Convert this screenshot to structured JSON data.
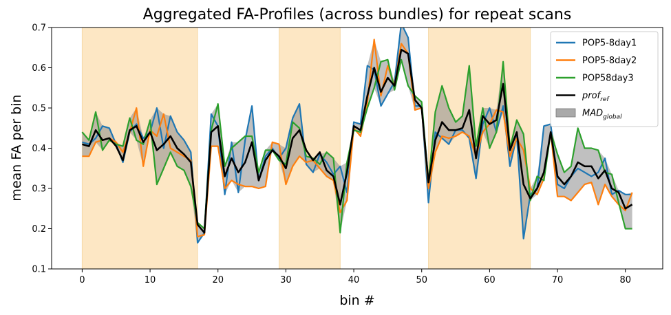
{
  "chart_data": {
    "type": "line",
    "title": "Aggregated FA-Profiles (across bundles) for repeat scans",
    "xlabel": "bin #",
    "ylabel": "mean FA per bin",
    "xlim": [
      -4.5,
      85.5
    ],
    "ylim": [
      0.1,
      0.7
    ],
    "xticks": [
      0,
      10,
      20,
      30,
      40,
      50,
      60,
      70,
      80
    ],
    "yticks": [
      0.1,
      0.2,
      0.3,
      0.4,
      0.5,
      0.6,
      0.7
    ],
    "grid": false,
    "legend_position": "top-right",
    "shaded_regions": [
      [
        0,
        17
      ],
      [
        29,
        38
      ],
      [
        51,
        66
      ]
    ],
    "shaded_color": "#fde7c4",
    "series": [
      {
        "name": "POP5-8day1",
        "color": "#1f77b4",
        "values": [
          0.415,
          0.41,
          0.425,
          0.455,
          0.45,
          0.41,
          0.365,
          0.44,
          0.46,
          0.425,
          0.44,
          0.5,
          0.4,
          0.48,
          0.44,
          0.42,
          0.39,
          0.165,
          0.19,
          0.485,
          0.455,
          0.285,
          0.415,
          0.29,
          0.42,
          0.505,
          0.32,
          0.38,
          0.4,
          0.375,
          0.4,
          0.475,
          0.51,
          0.36,
          0.34,
          0.385,
          0.365,
          0.335,
          0.355,
          0.29,
          0.465,
          0.46,
          0.605,
          0.595,
          0.505,
          0.535,
          0.565,
          0.71,
          0.675,
          0.505,
          0.505,
          0.265,
          0.44,
          0.425,
          0.41,
          0.445,
          0.445,
          0.425,
          0.325,
          0.46,
          0.5,
          0.44,
          0.505,
          0.355,
          0.43,
          0.175,
          0.285,
          0.3,
          0.455,
          0.46,
          0.31,
          0.3,
          0.33,
          0.35,
          0.34,
          0.33,
          0.34,
          0.375,
          0.285,
          0.295,
          0.285,
          0.285
        ]
      },
      {
        "name": "POP5-8day2",
        "color": "#ff7f0e",
        "values": [
          0.38,
          0.38,
          0.415,
          0.42,
          0.425,
          0.415,
          0.39,
          0.44,
          0.5,
          0.355,
          0.445,
          0.43,
          0.485,
          0.4,
          0.39,
          0.38,
          0.37,
          0.18,
          0.185,
          0.405,
          0.405,
          0.3,
          0.32,
          0.31,
          0.305,
          0.305,
          0.3,
          0.305,
          0.415,
          0.41,
          0.31,
          0.355,
          0.38,
          0.365,
          0.37,
          0.35,
          0.33,
          0.32,
          0.24,
          0.27,
          0.45,
          0.43,
          0.515,
          0.67,
          0.53,
          0.605,
          0.555,
          0.66,
          0.635,
          0.495,
          0.5,
          0.3,
          0.39,
          0.43,
          0.425,
          0.43,
          0.44,
          0.43,
          0.38,
          0.44,
          0.46,
          0.495,
          0.49,
          0.38,
          0.425,
          0.395,
          0.3,
          0.285,
          0.325,
          0.44,
          0.28,
          0.28,
          0.27,
          0.29,
          0.31,
          0.315,
          0.26,
          0.31,
          0.28,
          0.26,
          0.245,
          0.29
        ]
      },
      {
        "name": "POP58day3",
        "color": "#2ca02c",
        "values": [
          0.44,
          0.42,
          0.49,
          0.395,
          0.42,
          0.41,
          0.405,
          0.475,
          0.42,
          0.41,
          0.47,
          0.31,
          0.35,
          0.39,
          0.355,
          0.345,
          0.305,
          0.215,
          0.2,
          0.445,
          0.51,
          0.355,
          0.4,
          0.415,
          0.43,
          0.43,
          0.34,
          0.395,
          0.395,
          0.37,
          0.36,
          0.465,
          0.45,
          0.38,
          0.375,
          0.36,
          0.39,
          0.375,
          0.19,
          0.365,
          0.445,
          0.44,
          0.5,
          0.55,
          0.615,
          0.62,
          0.545,
          0.62,
          0.555,
          0.53,
          0.515,
          0.315,
          0.49,
          0.555,
          0.5,
          0.465,
          0.48,
          0.605,
          0.405,
          0.5,
          0.4,
          0.44,
          0.615,
          0.4,
          0.47,
          0.435,
          0.27,
          0.33,
          0.32,
          0.44,
          0.385,
          0.34,
          0.355,
          0.45,
          0.4,
          0.4,
          0.395,
          0.34,
          0.335,
          0.265,
          0.2,
          0.2
        ]
      },
      {
        "name": "prof_ref",
        "color": "#000000",
        "values": [
          0.41,
          0.405,
          0.445,
          0.42,
          0.425,
          0.405,
          0.37,
          0.445,
          0.455,
          0.415,
          0.44,
          0.395,
          0.41,
          0.43,
          0.4,
          0.385,
          0.365,
          0.21,
          0.19,
          0.44,
          0.455,
          0.33,
          0.375,
          0.34,
          0.365,
          0.415,
          0.32,
          0.37,
          0.395,
          0.38,
          0.35,
          0.425,
          0.445,
          0.395,
          0.37,
          0.39,
          0.345,
          0.33,
          0.26,
          0.34,
          0.455,
          0.445,
          0.53,
          0.6,
          0.54,
          0.575,
          0.555,
          0.645,
          0.635,
          0.52,
          0.5,
          0.315,
          0.42,
          0.465,
          0.445,
          0.445,
          0.45,
          0.495,
          0.375,
          0.48,
          0.46,
          0.47,
          0.56,
          0.395,
          0.44,
          0.31,
          0.275,
          0.3,
          0.34,
          0.44,
          0.33,
          0.31,
          0.33,
          0.365,
          0.355,
          0.355,
          0.325,
          0.345,
          0.3,
          0.29,
          0.25,
          0.26
        ]
      }
    ],
    "legend": [
      {
        "label": "POP5-8day1",
        "color": "#1f77b4",
        "kind": "line"
      },
      {
        "label": "POP5-8day2",
        "color": "#ff7f0e",
        "kind": "line"
      },
      {
        "label": "POP58day3",
        "color": "#2ca02c",
        "kind": "line"
      },
      {
        "label": "prof",
        "sub": "ref",
        "color": "#000000",
        "kind": "line"
      },
      {
        "label": "MAD",
        "sub": "global",
        "color": "#a9a9a9",
        "kind": "patch"
      }
    ],
    "band_color": "#8c8c8c"
  }
}
